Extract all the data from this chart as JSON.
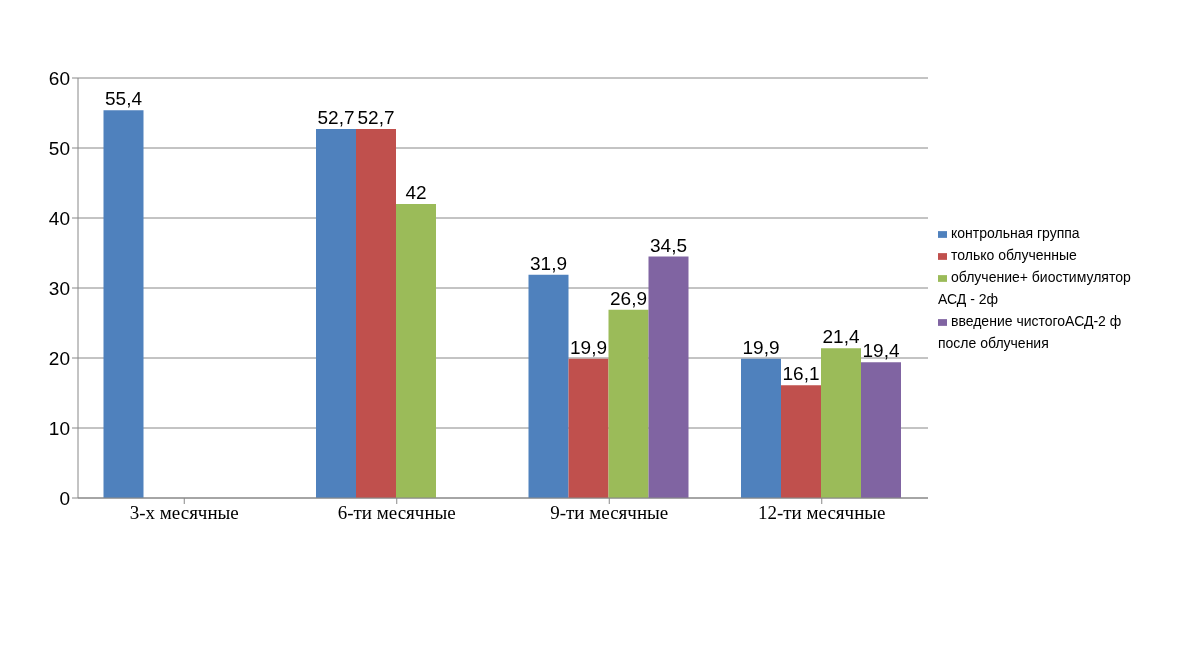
{
  "chart_data": {
    "type": "bar",
    "categories": [
      "3-х месячные",
      "6-ти месячные",
      "9-ти месячные",
      "12-ти месячные"
    ],
    "series": [
      {
        "name": "контрольная группа",
        "color": "#4f81bd",
        "values": [
          55.4,
          52.7,
          31.9,
          19.9
        ],
        "value_labels": [
          "55,4",
          "52,7",
          "31,9",
          "19,9"
        ]
      },
      {
        "name": "только  облученные",
        "color": "#c0504d",
        "values": [
          null,
          52.7,
          19.9,
          16.1
        ],
        "value_labels": [
          null,
          "52,7",
          "19,9",
          "16,1"
        ]
      },
      {
        "name": "облучение+ биостимулятор  АСД  - 2ф",
        "color": "#9bbb59",
        "values": [
          null,
          42,
          26.9,
          21.4
        ],
        "value_labels": [
          null,
          "42",
          "26,9",
          "21,4"
        ]
      },
      {
        "name": "введение чистогоАСД-2 ф после облучения",
        "color": "#8064a2",
        "values": [
          null,
          null,
          34.5,
          19.4
        ],
        "value_labels": [
          null,
          null,
          "34,5",
          "19,4"
        ]
      }
    ],
    "ylim": [
      0,
      60
    ],
    "yticks": [
      0,
      10,
      20,
      30,
      40,
      50,
      60
    ],
    "grid": "y",
    "legend": "right"
  }
}
